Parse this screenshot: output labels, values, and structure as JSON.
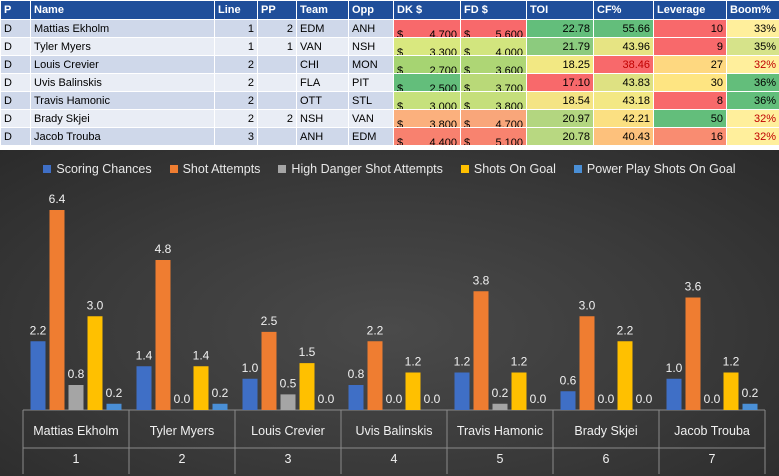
{
  "table": {
    "headers": [
      "P",
      "Name",
      "Line",
      "PP",
      "Team",
      "Opp",
      "DK $",
      "FD $",
      "TOI",
      "CF%",
      "Leverage",
      "Boom%"
    ],
    "rows": [
      {
        "p": "D",
        "name": "Mattias Ekholm",
        "line": "1",
        "pp": "2",
        "team": "EDM",
        "opp": "ANH",
        "dk": "4,700",
        "fd": "5,600",
        "toi": "22.78",
        "cf": "55.66",
        "leverage": "10",
        "boom": "33%"
      },
      {
        "p": "D",
        "name": "Tyler Myers",
        "line": "1",
        "pp": "1",
        "team": "VAN",
        "opp": "NSH",
        "dk": "3,300",
        "fd": "4,000",
        "toi": "21.79",
        "cf": "43.96",
        "leverage": "9",
        "boom": "35%"
      },
      {
        "p": "D",
        "name": "Louis Crevier",
        "line": "2",
        "pp": "",
        "team": "CHI",
        "opp": "MON",
        "dk": "2,700",
        "fd": "3,600",
        "toi": "18.25",
        "cf": "38.46",
        "leverage": "27",
        "boom": "32%"
      },
      {
        "p": "D",
        "name": "Uvis Balinskis",
        "line": "2",
        "pp": "",
        "team": "FLA",
        "opp": "PIT",
        "dk": "2,500",
        "fd": "3,700",
        "toi": "17.10",
        "cf": "43.83",
        "leverage": "30",
        "boom": "36%"
      },
      {
        "p": "D",
        "name": "Travis Hamonic",
        "line": "2",
        "pp": "",
        "team": "OTT",
        "opp": "STL",
        "dk": "3,000",
        "fd": "3,800",
        "toi": "18.54",
        "cf": "43.18",
        "leverage": "8",
        "boom": "36%"
      },
      {
        "p": "D",
        "name": "Brady Skjei",
        "line": "2",
        "pp": "2",
        "team": "NSH",
        "opp": "VAN",
        "dk": "3,800",
        "fd": "4,700",
        "toi": "20.97",
        "cf": "42.21",
        "leverage": "50",
        "boom": "32%"
      },
      {
        "p": "D",
        "name": "Jacob Trouba",
        "line": "3",
        "pp": "",
        "team": "ANH",
        "opp": "EDM",
        "dk": "4,400",
        "fd": "5,100",
        "toi": "20.78",
        "cf": "40.43",
        "leverage": "16",
        "boom": "32%"
      }
    ],
    "currency": "$",
    "cell_colors": {
      "dk": [
        "#f8696b",
        "#d9e87f",
        "#a6d472",
        "#63be7b",
        "#c6e17c",
        "#fbb07d",
        "#f8816f"
      ],
      "fd": [
        "#f8696b",
        "#d2e57e",
        "#aed675",
        "#b9d978",
        "#c5df7b",
        "#f9a67a",
        "#f8836f"
      ],
      "toi": [
        "#63be7b",
        "#8ccb7e",
        "#f2e883",
        "#f8696b",
        "#f4e484",
        "#b3d680",
        "#b8d881"
      ],
      "cf": [
        "#63be7b",
        "#e6e483",
        "#f8696b",
        "#dee182",
        "#f3e884",
        "#fbe082",
        "#fdc17c"
      ],
      "leverage": [
        "#f8696b",
        "#f8696b",
        "#fed880",
        "#fee582",
        "#f8696b",
        "#63be7b",
        "#f98c71"
      ],
      "boom": [
        "#ffef9c",
        "#d6e38a",
        "#ffef9c",
        "#63be7b",
        "#63be7b",
        "#ffef9c",
        "#ffef9c"
      ]
    },
    "red_boom": [
      false,
      false,
      true,
      false,
      false,
      true,
      true
    ],
    "red_cf": [
      false,
      false,
      true,
      false,
      false,
      false,
      false
    ]
  },
  "chart_data": {
    "type": "bar",
    "categories": [
      "Mattias Ekholm",
      "Tyler Myers",
      "Louis Crevier",
      "Uvis Balinskis",
      "Travis Hamonic",
      "Brady Skjei",
      "Jacob Trouba"
    ],
    "category_index": [
      "1",
      "2",
      "3",
      "4",
      "5",
      "6",
      "7"
    ],
    "series": [
      {
        "name": "Scoring Chances",
        "color": "#3f6fc6",
        "values": [
          2.2,
          1.4,
          1.0,
          0.8,
          1.2,
          0.6,
          1.0
        ]
      },
      {
        "name": "Shot Attempts",
        "color": "#ef7d31",
        "values": [
          6.4,
          4.8,
          2.5,
          2.2,
          3.8,
          3.0,
          3.6
        ]
      },
      {
        "name": "High Danger Shot Attempts",
        "color": "#a5a5a5",
        "values": [
          0.8,
          0.0,
          0.5,
          0.0,
          0.2,
          0.0,
          0.0
        ]
      },
      {
        "name": "Shots On Goal",
        "color": "#ffc000",
        "values": [
          3.0,
          1.4,
          1.5,
          1.2,
          1.2,
          2.2,
          1.2
        ]
      },
      {
        "name": "Power Play Shots On Goal",
        "color": "#4a8fd6",
        "values": [
          0.2,
          0.2,
          0.0,
          0.0,
          0.0,
          0.0,
          0.2
        ]
      }
    ],
    "ylim": [
      0,
      7
    ],
    "title": "",
    "xlabel": "",
    "ylabel": "",
    "legend_position": "top"
  }
}
